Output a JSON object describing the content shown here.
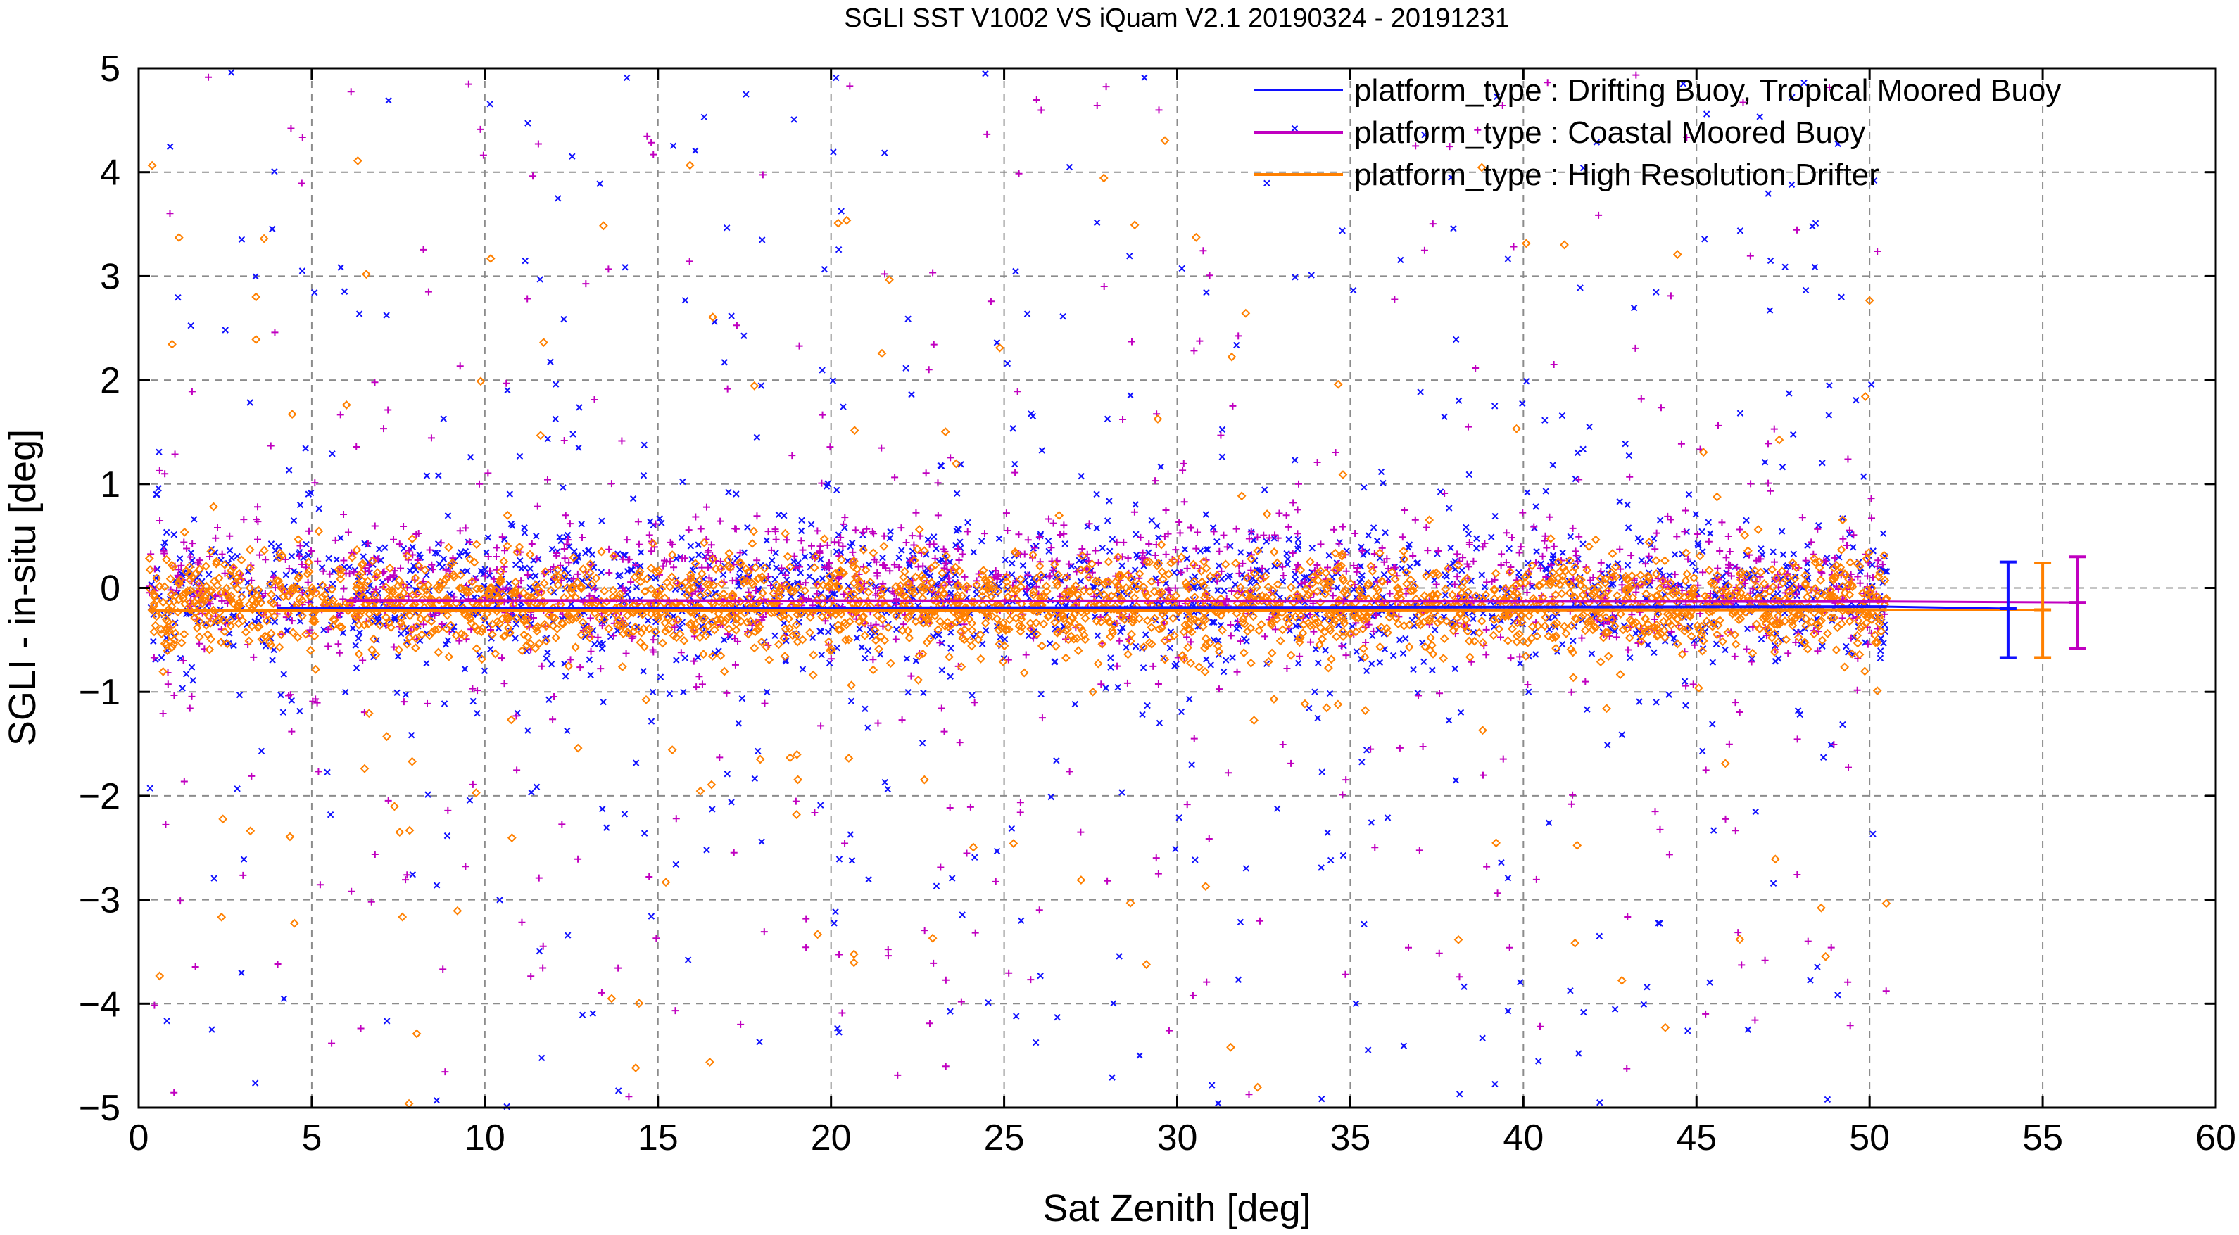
{
  "chart_data": {
    "type": "scatter",
    "title": "SGLI SST V1002 VS iQuam V2.1 20190324 - 20191231",
    "xlabel": "Sat Zenith [deg]",
    "ylabel": "SGLI - in-situ [deg]",
    "xlim": [
      0,
      60
    ],
    "ylim": [
      -5,
      5
    ],
    "xticks": [
      "0",
      "5",
      "10",
      "15",
      "20",
      "25",
      "30",
      "35",
      "40",
      "45",
      "50",
      "55",
      "60"
    ],
    "yticks": [
      "5",
      "4",
      "3",
      "2",
      "1",
      "0",
      "−1",
      "−2",
      "−3",
      "−4",
      "−5"
    ],
    "grid": true,
    "legend_position": "top-right",
    "x_data_range": [
      0.3,
      50.5
    ],
    "series": [
      {
        "name": "platform_type : Drifting Buoy, Tropical Moored Buoy",
        "color": "#1010ff",
        "marker": "x",
        "approx_spread": [
          -1.0,
          0.9
        ],
        "mean_line": {
          "x": [
            4,
            50.5
          ],
          "y": [
            -0.2,
            -0.18
          ]
        },
        "errorbar": {
          "x": 54,
          "mean": -0.2,
          "low": -0.67,
          "high": 0.25
        }
      },
      {
        "name": "platform_type : Coastal Moored Buoy",
        "color": "#c000c0",
        "marker": "+",
        "approx_spread": [
          -0.9,
          1.0
        ],
        "mean_line": {
          "x": [
            6,
            50.5
          ],
          "y": [
            -0.12,
            -0.13
          ]
        },
        "errorbar": {
          "x": 56,
          "mean": -0.14,
          "low": -0.58,
          "high": 0.3
        }
      },
      {
        "name": "platform_type : High Resolution Drifter",
        "color": "#ff8000",
        "marker": "diamond",
        "approx_spread": [
          -0.8,
          0.5
        ],
        "mean_line": {
          "x": [
            0.3,
            50.5
          ],
          "y": [
            -0.22,
            -0.21
          ]
        },
        "errorbar": {
          "x": 55,
          "mean": -0.21,
          "low": -0.67,
          "high": 0.24
        }
      }
    ]
  }
}
